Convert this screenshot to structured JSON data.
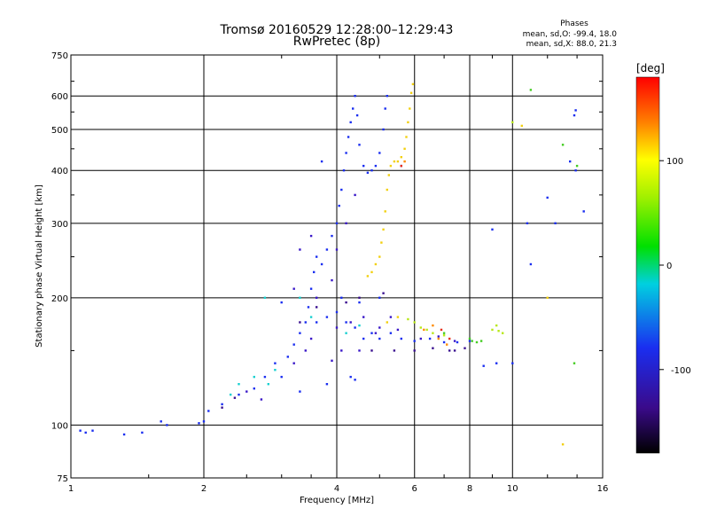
{
  "header": {
    "title_line1": "Tromsø 20160529 12:28:00–12:29:43",
    "title_line2": "RwPretec (8p)",
    "phase_title": "Phases",
    "phase_o": "mean, sd,O: -99.4, 18.0",
    "phase_x": "mean, sd,X:  88.0, 21.3"
  },
  "chart_data": {
    "type": "scatter",
    "xlabel": "Frequency [MHz]",
    "ylabel": "Stationary phase Virtual Height [km]",
    "x_scale": "log",
    "y_scale": "log",
    "xlim": [
      1,
      16
    ],
    "ylim": [
      75,
      750
    ],
    "x_ticks": [
      1,
      2,
      4,
      6,
      8,
      10,
      16
    ],
    "y_ticks": [
      75,
      100,
      200,
      300,
      400,
      500,
      600,
      750
    ],
    "grid": true,
    "colorbar": {
      "label": "[deg]",
      "range": [
        -180,
        180
      ],
      "ticks": [
        100,
        0,
        -100
      ],
      "colormap": "rainbow"
    },
    "series": [
      {
        "phase_deg": -100,
        "color": "#1a2ef0",
        "points": [
          [
            1.05,
            97
          ],
          [
            1.08,
            96
          ],
          [
            1.12,
            97
          ],
          [
            1.32,
            95
          ],
          [
            1.45,
            96
          ],
          [
            1.6,
            102
          ],
          [
            1.65,
            100
          ],
          [
            1.95,
            101
          ],
          [
            2.0,
            102
          ],
          [
            2.05,
            108
          ],
          [
            2.2,
            112
          ],
          [
            2.4,
            118
          ],
          [
            2.6,
            122
          ],
          [
            2.75,
            130
          ],
          [
            2.9,
            140
          ],
          [
            3.0,
            130
          ],
          [
            3.1,
            145
          ],
          [
            3.2,
            155
          ],
          [
            3.3,
            165
          ],
          [
            3.4,
            175
          ],
          [
            3.45,
            190
          ],
          [
            3.5,
            210
          ],
          [
            3.55,
            230
          ],
          [
            3.6,
            250
          ],
          [
            3.7,
            240
          ],
          [
            3.8,
            260
          ],
          [
            3.9,
            280
          ],
          [
            4.0,
            300
          ],
          [
            4.05,
            330
          ],
          [
            4.1,
            360
          ],
          [
            4.15,
            400
          ],
          [
            4.2,
            440
          ],
          [
            4.25,
            480
          ],
          [
            4.3,
            520
          ],
          [
            4.35,
            560
          ],
          [
            4.4,
            600
          ],
          [
            4.45,
            540
          ],
          [
            4.5,
            460
          ],
          [
            4.6,
            410
          ],
          [
            4.7,
            395
          ],
          [
            4.8,
            400
          ],
          [
            4.9,
            410
          ],
          [
            5.0,
            440
          ],
          [
            5.1,
            500
          ],
          [
            5.15,
            560
          ],
          [
            5.2,
            600
          ],
          [
            3.6,
            175
          ],
          [
            3.8,
            180
          ],
          [
            4.0,
            185
          ],
          [
            4.2,
            175
          ],
          [
            4.4,
            170
          ],
          [
            4.6,
            160
          ],
          [
            4.8,
            165
          ],
          [
            5.0,
            160
          ],
          [
            5.3,
            165
          ],
          [
            5.6,
            160
          ],
          [
            6.0,
            158
          ],
          [
            6.5,
            160
          ],
          [
            7.0,
            157
          ],
          [
            7.5,
            157
          ],
          [
            8.0,
            158
          ],
          [
            4.3,
            130
          ],
          [
            4.4,
            128
          ],
          [
            3.3,
            120
          ],
          [
            3.8,
            125
          ],
          [
            4.1,
            200
          ],
          [
            4.5,
            195
          ],
          [
            5.0,
            200
          ],
          [
            10.8,
            300
          ],
          [
            11.0,
            240
          ],
          [
            12.5,
            300
          ],
          [
            13.8,
            540
          ],
          [
            13.9,
            555
          ],
          [
            13.5,
            420
          ],
          [
            13.9,
            400
          ],
          [
            14.5,
            320
          ],
          [
            12.0,
            345
          ],
          [
            9.0,
            290
          ],
          [
            9.2,
            140
          ],
          [
            10.0,
            140
          ],
          [
            8.6,
            138
          ],
          [
            3.0,
            195
          ],
          [
            5.6,
            410
          ],
          [
            3.7,
            420
          ]
        ]
      },
      {
        "phase_deg": -80,
        "color": "#3a18c8",
        "points": [
          [
            2.5,
            120
          ],
          [
            2.7,
            115
          ],
          [
            3.2,
            140
          ],
          [
            3.4,
            150
          ],
          [
            3.5,
            160
          ],
          [
            3.9,
            220
          ],
          [
            4.0,
            170
          ],
          [
            4.3,
            175
          ],
          [
            4.6,
            180
          ],
          [
            5.0,
            170
          ],
          [
            5.5,
            168
          ],
          [
            6.2,
            160
          ],
          [
            6.8,
            162
          ],
          [
            7.4,
            158
          ],
          [
            3.6,
            200
          ],
          [
            4.0,
            260
          ],
          [
            4.2,
            300
          ],
          [
            4.4,
            350
          ],
          [
            3.3,
            260
          ],
          [
            3.5,
            280
          ],
          [
            3.2,
            210
          ],
          [
            4.1,
            150
          ],
          [
            4.5,
            150
          ],
          [
            4.9,
            165
          ],
          [
            5.3,
            180
          ],
          [
            3.9,
            142
          ]
        ]
      },
      {
        "phase_deg": 10,
        "color": "#44cc22",
        "points": [
          [
            8.0,
            160
          ],
          [
            8.1,
            158
          ],
          [
            8.3,
            157
          ],
          [
            8.5,
            158
          ],
          [
            7.0,
            165
          ],
          [
            11.0,
            620
          ],
          [
            13.0,
            460
          ],
          [
            14.0,
            410
          ],
          [
            13.8,
            140
          ]
        ]
      },
      {
        "phase_deg": 60,
        "color": "#b8e81a",
        "points": [
          [
            6.0,
            175
          ],
          [
            6.2,
            170
          ],
          [
            6.4,
            168
          ],
          [
            6.6,
            165
          ],
          [
            7.0,
            163
          ],
          [
            9.0,
            168
          ],
          [
            9.3,
            167
          ],
          [
            9.5,
            165
          ],
          [
            9.2,
            172
          ],
          [
            5.8,
            178
          ],
          [
            10.0,
            520
          ]
        ]
      },
      {
        "phase_deg": 100,
        "color": "#f2d010",
        "points": [
          [
            4.8,
            230
          ],
          [
            4.9,
            240
          ],
          [
            5.0,
            250
          ],
          [
            5.05,
            270
          ],
          [
            5.1,
            290
          ],
          [
            5.15,
            320
          ],
          [
            5.2,
            360
          ],
          [
            5.25,
            390
          ],
          [
            5.3,
            410
          ],
          [
            5.4,
            420
          ],
          [
            5.5,
            420
          ],
          [
            5.6,
            430
          ],
          [
            5.7,
            450
          ],
          [
            5.75,
            480
          ],
          [
            5.8,
            520
          ],
          [
            5.85,
            560
          ],
          [
            5.9,
            610
          ],
          [
            5.95,
            640
          ],
          [
            5.2,
            175
          ],
          [
            5.5,
            180
          ],
          [
            4.7,
            225
          ],
          [
            10.5,
            510
          ],
          [
            12.0,
            200
          ],
          [
            13.0,
            90
          ]
        ]
      },
      {
        "phase_deg": 140,
        "color": "#ff8a00",
        "points": [
          [
            5.7,
            420
          ],
          [
            6.6,
            172
          ],
          [
            6.8,
            160
          ],
          [
            7.1,
            155
          ],
          [
            6.3,
            168
          ]
        ]
      },
      {
        "phase_deg": 170,
        "color": "#e8301a",
        "points": [
          [
            5.6,
            410
          ],
          [
            6.9,
            168
          ],
          [
            7.2,
            160
          ]
        ]
      },
      {
        "phase_deg": -10,
        "color": "#18d0d0",
        "points": [
          [
            2.4,
            125
          ],
          [
            2.6,
            130
          ],
          [
            2.8,
            125
          ],
          [
            2.9,
            135
          ],
          [
            2.75,
            200
          ],
          [
            3.3,
            200
          ],
          [
            3.5,
            180
          ],
          [
            2.3,
            118
          ],
          [
            4.2,
            165
          ],
          [
            4.5,
            172
          ]
        ]
      },
      {
        "phase_deg": -140,
        "color": "#3a1090",
        "points": [
          [
            2.2,
            110
          ],
          [
            2.35,
            116
          ],
          [
            3.3,
            175
          ],
          [
            3.6,
            190
          ],
          [
            4.2,
            195
          ],
          [
            4.5,
            200
          ],
          [
            5.1,
            205
          ],
          [
            4.8,
            150
          ],
          [
            5.4,
            150
          ],
          [
            6.0,
            150
          ],
          [
            6.6,
            152
          ],
          [
            7.2,
            150
          ],
          [
            7.8,
            152
          ],
          [
            7.4,
            150
          ]
        ]
      }
    ]
  }
}
